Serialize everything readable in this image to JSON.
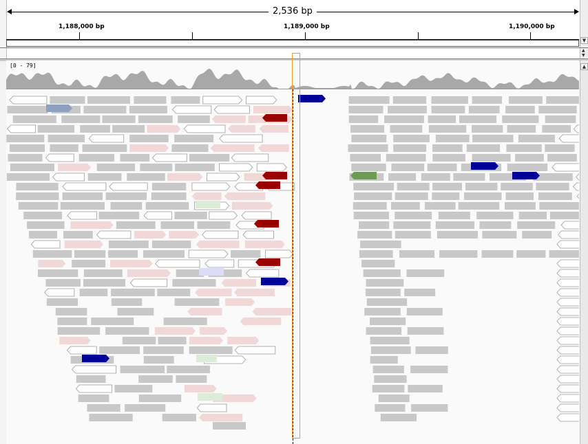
{
  "ruler": {
    "span_label": "2,536 bp",
    "ticks": [
      {
        "label": "1,188,000 bp"
      },
      {
        "label": "1,189,000 bp"
      },
      {
        "label": "1,190,000 bp"
      }
    ]
  },
  "coverage_track": {
    "range_label": "[0 - 79]"
  },
  "colors": {
    "read_gray": "#c8c8c8",
    "read_pink": "#f0d8d8",
    "read_white": "#ffffff",
    "read_darkred": "#990000",
    "read_navy": "#000099",
    "read_green": "#6f9a55",
    "read_steel": "#8ea0c0",
    "read_lightgreen": "#dcecd8",
    "read_lavender": "#dcdcf4",
    "coverage": "#a8a8a8",
    "highlight": "#f59a23"
  },
  "scrollbar": {
    "up_icon": "triangle-up-icon",
    "down_icon": "triangle-down-icon"
  }
}
